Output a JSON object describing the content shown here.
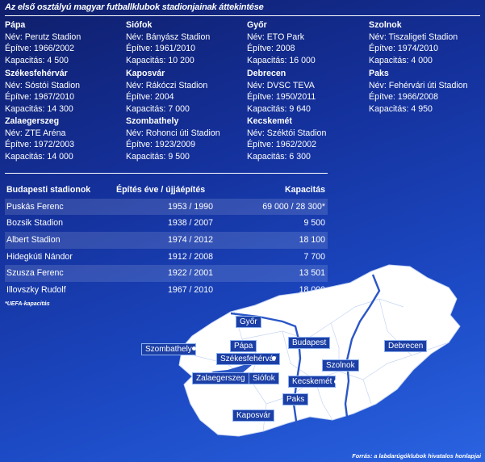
{
  "title": "Az első osztályú magyar futballklubok stadionjainak áttekintése",
  "clubs": [
    {
      "city": "Pápa",
      "name": "Név: Perutz Stadion",
      "built": "Építve: 1966/2002",
      "cap": "Kapacitás: 4 500"
    },
    {
      "city": "Siófok",
      "name": "Név: Bányász Stadion",
      "built": "Építve: 1961/2010",
      "cap": "Kapacitás: 10 200"
    },
    {
      "city": "Győr",
      "name": "Név: ETO Park",
      "built": "Építve: 2008",
      "cap": "Kapacitás: 16 000"
    },
    {
      "city": "Szolnok",
      "name": "Név: Tiszaligeti Stadion",
      "built": "Építve: 1974/2010",
      "cap": "Kapacitás: 4 000"
    },
    {
      "city": "Székesfehérvár",
      "name": "Név: Sóstói Stadion",
      "built": "Építve: 1967/2010",
      "cap": "Kapacitás: 14 300"
    },
    {
      "city": "Kaposvár",
      "name": "Név: Rákóczi Stadion",
      "built": "Építve: 2004",
      "cap": "Kapacitás: 7 000"
    },
    {
      "city": "Debrecen",
      "name": "Név: DVSC TEVA",
      "built": "Építve: 1950/2011",
      "cap": "Kapacitás: 9 640"
    },
    {
      "city": "Paks",
      "name": "Név: Fehérvári úti Stadion",
      "built": "Építve: 1966/2008",
      "cap": "Kapacitás: 4 950"
    },
    {
      "city": "Zalaegerszeg",
      "name": "Név: ZTE Aréna",
      "built": "Építve: 1972/2003",
      "cap": "Kapacitás: 14 000"
    },
    {
      "city": "Szombathely",
      "name": "Név: Rohonci úti Stadion",
      "built": "Építve: 1923/2009",
      "cap": "Kapacitás: 9 500"
    },
    {
      "city": "Kecskemét",
      "name": "Név: Széktói Stadion",
      "built": "Építve: 1962/2002",
      "cap": "Kapacitás: 6 300"
    }
  ],
  "budapest": {
    "headers": [
      "Budapesti stadionok",
      "Építés éve / újjáépítés",
      "Kapacitás"
    ],
    "rows": [
      [
        "Puskás Ferenc",
        "1953 / 1990",
        "69 000 / 28 300*"
      ],
      [
        "Bozsik Stadion",
        "1938 / 2007",
        "9 500"
      ],
      [
        "Albert Stadion",
        "1974 / 2012",
        "18 100"
      ],
      [
        "Hidegkúti Nándor",
        "1912 / 2008",
        "7 700"
      ],
      [
        "Szusza Ferenc",
        "1922 / 2001",
        "13 501"
      ],
      [
        "Illovszky Rudolf",
        "1967 / 2010",
        "18 000"
      ]
    ]
  },
  "footnote": "*UEFA-kapacitás",
  "source": "Forrás: a labdarúgóklubok hivatalos honlapjai",
  "map_labels": [
    "Győr",
    "Pápa",
    "Szombathely",
    "Székesfehérvár",
    "Budapest",
    "Debrecen",
    "Szolnok",
    "Zalaegerszeg",
    "Siófok",
    "Kecskemét",
    "Paks",
    "Kaposvár"
  ],
  "colors": {
    "bg_dark": "#0f1e6a",
    "bg_light": "#2a63e0",
    "map_fill": "#ffffff",
    "river": "#2a56c8",
    "label_bg": "#1c3fa6"
  }
}
